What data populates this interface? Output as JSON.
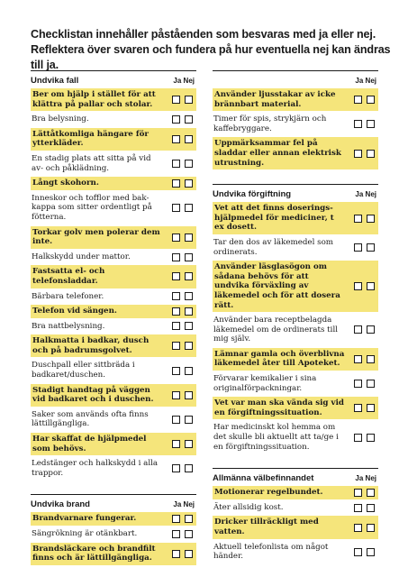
{
  "intro": "Checklistan innehåller påståenden som besvaras med ja eller nej. Reflektera över svaren och fundera på hur eventuella nej kan ändras till ja.",
  "ja_nej": "Ja Nej",
  "colors": {
    "highlight": "#f5e57b"
  },
  "left_column": [
    {
      "title": "Undvika fall",
      "items": [
        {
          "text": "Ber om hjälp i stället för att klättra på pallar och stolar.",
          "highlight": true
        },
        {
          "text": "Bra belysning.",
          "highlight": false
        },
        {
          "text": "Lättåtkomliga hängare för ytterkläder.",
          "highlight": true
        },
        {
          "text": "En stadig plats att sitta på vid av- och påklädning.",
          "highlight": false
        },
        {
          "text": "Långt skohorn.",
          "highlight": true
        },
        {
          "text": "Inneskor och tofflor med bak-kappa som sitter ordentligt på fötterna.",
          "highlight": false
        },
        {
          "text": "Torkar golv men polerar dem inte.",
          "highlight": true
        },
        {
          "text": "Halkskydd under mattor.",
          "highlight": false
        },
        {
          "text": "Fastsatta el- och telefonsladdar.",
          "highlight": true
        },
        {
          "text": "Bärbara telefoner.",
          "highlight": false
        },
        {
          "text": "Telefon vid sängen.",
          "highlight": true
        },
        {
          "text": "Bra nattbelysning.",
          "highlight": false
        },
        {
          "text": "Halkmatta i badkar, dusch och på badrumsgolvet.",
          "highlight": true
        },
        {
          "text": "Duschpall eller sittbräda i badkaret/duschen.",
          "highlight": false
        },
        {
          "text": "Stadigt handtag på väggen vid badkaret och i duschen.",
          "highlight": true
        },
        {
          "text": "Saker som används ofta finns lättillgängliga.",
          "highlight": false
        },
        {
          "text": "Har skaffat de hjälpmedel som behövs.",
          "highlight": true
        },
        {
          "text": "Ledstänger och halkskydd i alla trappor.",
          "highlight": false
        }
      ]
    },
    {
      "title": "Undvika brand",
      "items": [
        {
          "text": "Brandvarnare fungerar.",
          "highlight": true
        },
        {
          "text": "Sängrökning är otänkbart.",
          "highlight": false
        },
        {
          "text": "Brandsläckare och brandfilt finns och är lättillgängliga.",
          "highlight": true
        }
      ]
    }
  ],
  "right_column": [
    {
      "title": "",
      "items": [
        {
          "text": "Använder ljusstakar av icke brännbart material.",
          "highlight": true
        },
        {
          "text": "Timer för spis, strykjärn och kaffebryggare.",
          "highlight": false
        },
        {
          "text": "Uppmärksammar fel på sladdar eller annan elektrisk utrustning.",
          "highlight": true
        }
      ]
    },
    {
      "title": "Undvika förgiftning",
      "items": [
        {
          "text": "Vet att det finns doserings-hjälpmedel för mediciner, t ex dosett.",
          "highlight": true
        },
        {
          "text": "Tar den dos av läkemedel som ordinerats.",
          "highlight": false
        },
        {
          "text": "Använder läsglasögon om sådana behövs för att undvika förväxling av läkemedel och för att dosera rätt.",
          "highlight": true
        },
        {
          "text": "Använder bara receptbelagda läkemedel om de ordinerats till mig själv.",
          "highlight": false
        },
        {
          "text": "Lämnar gamla och överblivna läkemedel åter till Apoteket.",
          "highlight": true
        },
        {
          "text": "Förvarar kemikalier i sina originalförpackningar.",
          "highlight": false
        },
        {
          "text": "Vet var man ska vända sig vid en förgiftningssituation.",
          "highlight": true
        },
        {
          "text": "Har medicinskt kol hemma om det skulle bli aktuellt att ta/ge i en förgiftningssituation.",
          "highlight": false
        }
      ]
    },
    {
      "title": "Allmänna välbefinnandet",
      "items": [
        {
          "text": "Motionerar regelbundet.",
          "highlight": true
        },
        {
          "text": "Äter allsidig kost.",
          "highlight": false
        },
        {
          "text": "Dricker tillräckligt med vatten.",
          "highlight": true
        },
        {
          "text": "Aktuell telefonlista om något händer.",
          "highlight": false
        }
      ]
    }
  ]
}
